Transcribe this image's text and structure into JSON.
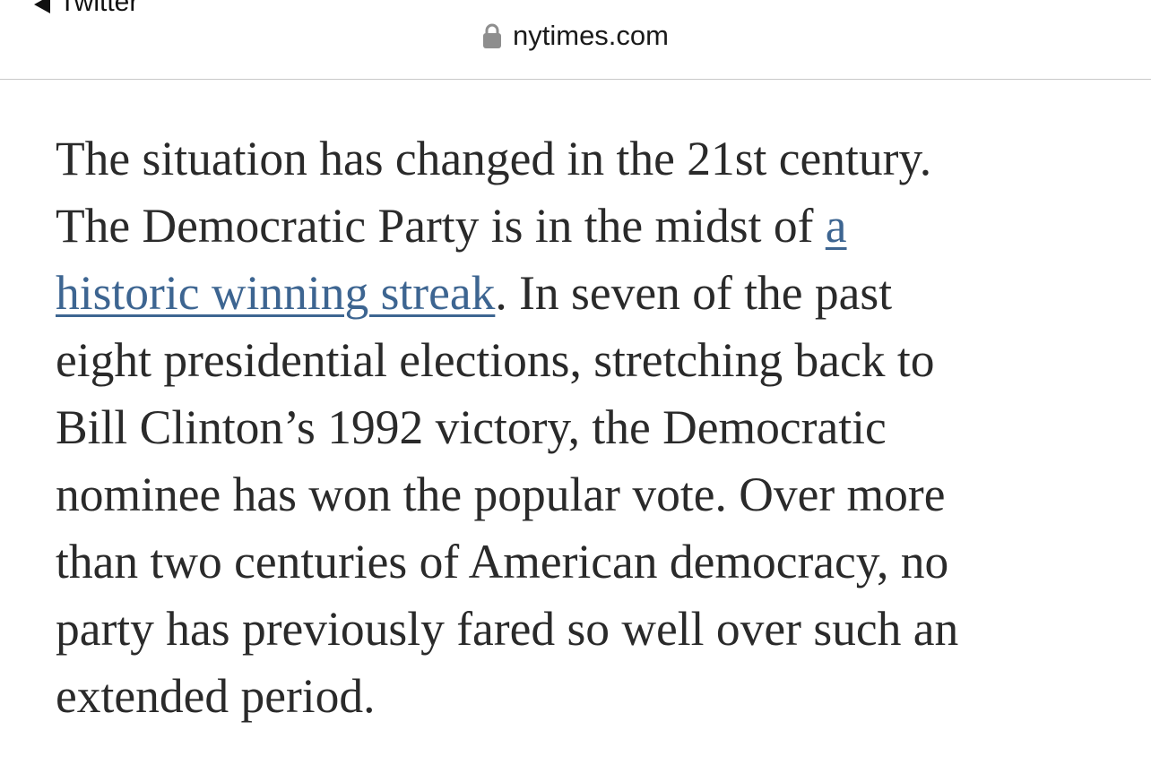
{
  "browser": {
    "back_label": "Twitter",
    "domain": "nytimes.com"
  },
  "article": {
    "lines": [
      "The situation has changed in the 21st century.",
      "The Democratic Party is in the midst of ",
      ". In seven of the past",
      "eight presidential elections, stretching back to",
      "Bill Clinton’s 1992 victory, the Democratic",
      "nominee has won the popular vote. Over more",
      "than two centuries of American democracy, no",
      "party has previously fared so well over such an",
      "extended period."
    ],
    "link_part1": "a",
    "link_part2": "historic winning streak"
  },
  "colors": {
    "link": "#3d6591",
    "text": "#2a2a2a"
  }
}
